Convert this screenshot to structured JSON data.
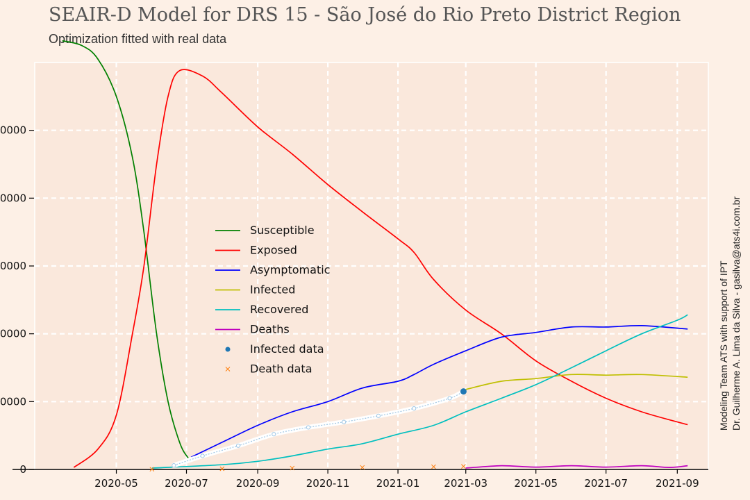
{
  "header": {
    "title": "SEAIR-D Model for DRS 15 - São José do Rio Preto District Region",
    "subtitle": "Optimization fitted with real data"
  },
  "credits": {
    "line1": "Modeling Team ATS with support of IPT",
    "line2": "Dr. Guilherme A. Lima da Silva - gasilva@ats4i.com.br"
  },
  "colors": {
    "background": "#fdf0e6",
    "plot_area": "#fae8dc",
    "grid": "#ffffff",
    "Susceptible": "#008000",
    "Exposed": "#ff0000",
    "Asymptomatic": "#0000ff",
    "Infected": "#bfbf00",
    "Recovered": "#00bfbf",
    "Deaths": "#bf00bf",
    "Infected data": "#1f77b4",
    "Death data": "#ff7f0e"
  },
  "chart_data": {
    "type": "line",
    "title": "SEAIR-D Model for DRS 15 - São José do Rio Preto District Region",
    "subtitle": "Optimization fitted with real data",
    "xlabel": "",
    "ylabel": "",
    "x_type": "date",
    "xlim": [
      "2020-02-20",
      "2021-09-28"
    ],
    "ylim": [
      0,
      60000
    ],
    "grid": true,
    "legend_position": "center-left",
    "x_ticks": [
      {
        "date": "2020-05-01",
        "label": "2020-05"
      },
      {
        "date": "2020-07-01",
        "label": "2020-07"
      },
      {
        "date": "2020-09-01",
        "label": "2020-09"
      },
      {
        "date": "2020-11-01",
        "label": "2020-11"
      },
      {
        "date": "2021-01-01",
        "label": "2021-01"
      },
      {
        "date": "2021-03-01",
        "label": "2021-03"
      },
      {
        "date": "2021-05-01",
        "label": "2021-05"
      },
      {
        "date": "2021-07-01",
        "label": "2021-07"
      },
      {
        "date": "2021-09-01",
        "label": "2021-09"
      }
    ],
    "y_ticks": [
      {
        "value": 0,
        "label": "0"
      },
      {
        "value": 10000,
        "label": "0000"
      },
      {
        "value": 20000,
        "label": "0000"
      },
      {
        "value": 30000,
        "label": "0000"
      },
      {
        "value": 40000,
        "label": "0000"
      },
      {
        "value": 50000,
        "label": "0000"
      }
    ],
    "series": [
      {
        "name": "Susceptible",
        "kind": "line",
        "points": [
          [
            "2020-03-15",
            63200
          ],
          [
            "2020-04-01",
            62500
          ],
          [
            "2020-04-15",
            60500
          ],
          [
            "2020-05-01",
            55000
          ],
          [
            "2020-05-15",
            46000
          ],
          [
            "2020-05-25",
            35000
          ],
          [
            "2020-06-05",
            20000
          ],
          [
            "2020-06-15",
            10000
          ],
          [
            "2020-06-25",
            4000
          ],
          [
            "2020-07-02",
            1800
          ],
          [
            "2020-07-05",
            1500
          ]
        ]
      },
      {
        "name": "Exposed",
        "kind": "line",
        "points": [
          [
            "2020-03-25",
            300
          ],
          [
            "2020-04-15",
            3000
          ],
          [
            "2020-05-01",
            8000
          ],
          [
            "2020-05-15",
            20000
          ],
          [
            "2020-05-25",
            30000
          ],
          [
            "2020-06-05",
            45000
          ],
          [
            "2020-06-15",
            55000
          ],
          [
            "2020-06-25",
            58800
          ],
          [
            "2020-07-15",
            58000
          ],
          [
            "2020-08-01",
            55500
          ],
          [
            "2020-09-01",
            50500
          ],
          [
            "2020-10-01",
            46500
          ],
          [
            "2020-11-01",
            42000
          ],
          [
            "2020-12-01",
            38000
          ],
          [
            "2021-01-01",
            34000
          ],
          [
            "2021-01-15",
            32000
          ],
          [
            "2021-02-01",
            28000
          ],
          [
            "2021-03-01",
            23500
          ],
          [
            "2021-04-01",
            20000
          ],
          [
            "2021-05-01",
            16000
          ],
          [
            "2021-06-01",
            13000
          ],
          [
            "2021-07-01",
            10500
          ],
          [
            "2021-08-01",
            8500
          ],
          [
            "2021-09-01",
            7000
          ],
          [
            "2021-09-10",
            6600
          ]
        ]
      },
      {
        "name": "Asymptomatic",
        "kind": "line",
        "points": [
          [
            "2020-07-05",
            1800
          ],
          [
            "2020-08-01",
            4000
          ],
          [
            "2020-09-01",
            6500
          ],
          [
            "2020-10-01",
            8500
          ],
          [
            "2020-11-01",
            10000
          ],
          [
            "2020-12-01",
            12000
          ],
          [
            "2021-01-01",
            13000
          ],
          [
            "2021-01-15",
            14000
          ],
          [
            "2021-02-01",
            15500
          ],
          [
            "2021-03-01",
            17500
          ],
          [
            "2021-04-01",
            19500
          ],
          [
            "2021-05-01",
            20200
          ],
          [
            "2021-06-01",
            21000
          ],
          [
            "2021-07-01",
            21000
          ],
          [
            "2021-08-01",
            21200
          ],
          [
            "2021-09-10",
            20700
          ]
        ]
      },
      {
        "name": "Infected",
        "kind": "line",
        "points": [
          [
            "2021-03-01",
            11800
          ],
          [
            "2021-04-01",
            13000
          ],
          [
            "2021-05-01",
            13400
          ],
          [
            "2021-06-01",
            14000
          ],
          [
            "2021-07-01",
            13900
          ],
          [
            "2021-08-01",
            14000
          ],
          [
            "2021-09-10",
            13600
          ]
        ]
      },
      {
        "name": "Recovered",
        "kind": "line",
        "points": [
          [
            "2020-06-01",
            200
          ],
          [
            "2020-08-01",
            700
          ],
          [
            "2020-09-01",
            1200
          ],
          [
            "2020-10-01",
            2000
          ],
          [
            "2020-11-01",
            3000
          ],
          [
            "2020-12-01",
            3800
          ],
          [
            "2021-01-01",
            5200
          ],
          [
            "2021-02-01",
            6500
          ],
          [
            "2021-03-01",
            8500
          ],
          [
            "2021-04-01",
            10500
          ],
          [
            "2021-05-01",
            12500
          ],
          [
            "2021-06-01",
            15000
          ],
          [
            "2021-07-01",
            17500
          ],
          [
            "2021-08-01",
            20000
          ],
          [
            "2021-09-01",
            22000
          ],
          [
            "2021-09-10",
            22800
          ]
        ]
      },
      {
        "name": "Deaths",
        "kind": "line",
        "points": [
          [
            "2021-03-01",
            200
          ],
          [
            "2021-04-01",
            550
          ],
          [
            "2021-05-01",
            350
          ],
          [
            "2021-06-01",
            550
          ],
          [
            "2021-07-01",
            350
          ],
          [
            "2021-08-01",
            550
          ],
          [
            "2021-08-25",
            300
          ],
          [
            "2021-09-10",
            550
          ]
        ]
      },
      {
        "name": "Infected data",
        "kind": "scatter",
        "points": [
          [
            "2020-06-20",
            600
          ],
          [
            "2020-07-15",
            2000
          ],
          [
            "2020-08-15",
            3500
          ],
          [
            "2020-09-15",
            5200
          ],
          [
            "2020-10-15",
            6200
          ],
          [
            "2020-11-15",
            7000
          ],
          [
            "2020-12-15",
            7900
          ],
          [
            "2021-01-15",
            9000
          ],
          [
            "2021-02-15",
            10500
          ],
          [
            "2021-02-27",
            11500
          ]
        ]
      },
      {
        "name": "Death data",
        "kind": "scatter",
        "points": [
          [
            "2020-06-01",
            30
          ],
          [
            "2020-08-01",
            100
          ],
          [
            "2020-10-01",
            200
          ],
          [
            "2020-12-01",
            300
          ],
          [
            "2021-02-01",
            400
          ],
          [
            "2021-02-27",
            450
          ]
        ]
      }
    ]
  }
}
